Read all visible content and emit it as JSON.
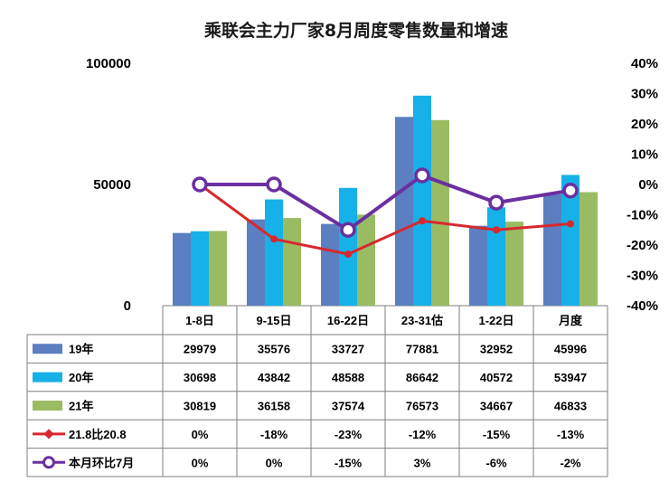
{
  "chart_data": {
    "type": "bar",
    "title": "乘联会主力厂家8月周度零售数量和增速",
    "categories": [
      "1-8日",
      "9-15日",
      "16-22日",
      "23-31估",
      "1-22日",
      "月度"
    ],
    "y_left": {
      "ylim": [
        0,
        100000
      ],
      "ticks": [
        "0",
        "50000",
        "100000"
      ]
    },
    "y_right": {
      "ylim": [
        -40,
        40
      ],
      "ticks": [
        "40%",
        "30%",
        "20%",
        "10%",
        "0%",
        "-10%",
        "-20%",
        "-30%",
        "-40%"
      ]
    },
    "series": [
      {
        "name": "19年",
        "kind": "bar",
        "color": "#5b7fc0",
        "values": [
          29979,
          35576,
          33727,
          77881,
          32952,
          45996
        ],
        "labels": [
          "29979",
          "35576",
          "33727",
          "77881",
          "32952",
          "45996"
        ]
      },
      {
        "name": "20年",
        "kind": "bar",
        "color": "#16b1e8",
        "values": [
          30698,
          43842,
          48588,
          86642,
          40572,
          53947
        ],
        "labels": [
          "30698",
          "43842",
          "48588",
          "86642",
          "40572",
          "53947"
        ]
      },
      {
        "name": "21年",
        "kind": "bar",
        "color": "#99bc63",
        "values": [
          30819,
          36158,
          37574,
          76573,
          34667,
          46833
        ],
        "labels": [
          "30819",
          "36158",
          "37574",
          "76573",
          "34667",
          "46833"
        ]
      },
      {
        "name": "21.8比20.8",
        "kind": "line",
        "axis": "right",
        "color": "#d7282f",
        "marker": "dot",
        "values": [
          0,
          -18,
          -23,
          -12,
          -15,
          -13
        ],
        "labels": [
          "0%",
          "-18%",
          "-23%",
          "-12%",
          "-15%",
          "-13%"
        ]
      },
      {
        "name": "本月环比7月",
        "kind": "line",
        "axis": "right",
        "color": "#6a2fa0",
        "marker": "ring",
        "values": [
          0,
          0,
          -15,
          3,
          -6,
          -2
        ],
        "labels": [
          "0%",
          "0%",
          "-15%",
          "3%",
          "-6%",
          "-2%"
        ]
      }
    ],
    "legend": "table-bottom"
  }
}
